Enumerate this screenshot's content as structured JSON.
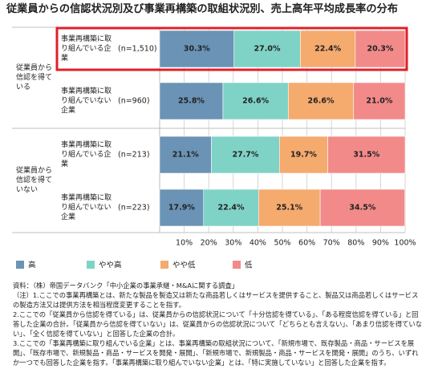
{
  "chart_data": {
    "type": "stacked-bar-horizontal",
    "title": "従業員からの信認状況別及び事業再構築の取組状況別、売上高年平均成長率の分布",
    "groups": [
      "従業員から信認を得ている",
      "従業員から信認を得ていない"
    ],
    "categories": [
      "事業再構築に取り組んでいる企業",
      "事業再構築に取り組んでいない企業",
      "事業再構築に取り組んでいる企業",
      "事業再構築に取り組んでいない企業"
    ],
    "sample_sizes": [
      "(n=1,510)",
      "(n=960)",
      "(n=213)",
      "(n=223)"
    ],
    "series": [
      {
        "name": "高",
        "color": "#6a93b5",
        "values": [
          30.3,
          25.8,
          21.1,
          17.9
        ],
        "value_labels": [
          "30.3%",
          "25.8%",
          "21.1%",
          "17.9%"
        ]
      },
      {
        "name": "やや高",
        "color": "#7fd3c6",
        "values": [
          27.0,
          26.6,
          27.7,
          22.4
        ],
        "value_labels": [
          "27.0%",
          "26.6%",
          "27.7%",
          "22.4%"
        ]
      },
      {
        "name": "やや低",
        "color": "#f5aa6e",
        "values": [
          22.4,
          26.6,
          19.7,
          25.1
        ],
        "value_labels": [
          "22.4%",
          "26.6%",
          "19.7%",
          "25.1%"
        ]
      },
      {
        "name": "低",
        "color": "#f28a8a",
        "values": [
          20.3,
          21.0,
          31.5,
          34.5
        ],
        "value_labels": [
          "20.3%",
          "21.0%",
          "31.5%",
          "34.5%"
        ]
      }
    ],
    "xlim": [
      0,
      100
    ],
    "xticks": [
      {
        "value": 10,
        "label": "10%"
      },
      {
        "value": 20,
        "label": "20%"
      },
      {
        "value": 30,
        "label": "30%"
      },
      {
        "value": 40,
        "label": "40%"
      },
      {
        "value": 50,
        "label": "50%"
      },
      {
        "value": 60,
        "label": "60%"
      },
      {
        "value": 70,
        "label": "70%"
      },
      {
        "value": 80,
        "label": "80%"
      },
      {
        "value": 90,
        "label": "90%"
      },
      {
        "value": 100,
        "label": "100%"
      }
    ],
    "grid": true,
    "notes": [
      "資料：（株）帝国データバンク「中小企業の事業承継・M&Aに関する調査」",
      "（注）1.ここでの事業再構築とは、新たな製品を製造又は新たな商品若しくはサービスを提供すること、製品又は商品若しくはサービスの製造方法又は提供方法を相当程度変更することを指す。",
      "2.ここでの「従業員から信認を得ている」は、従業員からの信認状況について「十分信認を得ている」、「ある程度信認を得ている」と回答した企業の合計。「従業員から信認を得ていない」は、従業員からの信認状況について「どちらとも言えない」、「あまり信認を得ていない」、「全く信認を得ていない」と回答した企業の合計。",
      "3.ここでの「事業再構築に取り組んでいる企業」とは、事業再構築の取組状況について、「新規市場で、既存製品・商品・サービスを展開」、「既存市場で、新規製品・商品・サービスを開発・展開」、「新規市場で、新規製品・商品・サービスを開発・展開」のうち、いずれか一つでも回答した企業を指す。「事業再構築に取り組んでいない企業」とは、「特に実施していない」と回答した企業を指す。"
    ]
  }
}
